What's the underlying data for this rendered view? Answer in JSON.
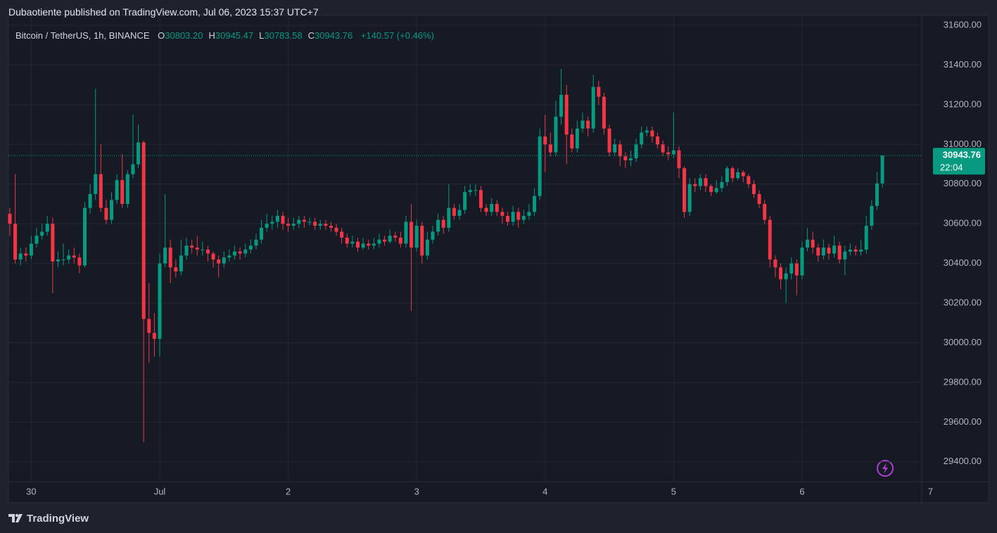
{
  "header": {
    "title": "Dubaotiente published on TradingView.com, Jul 06, 2023 15:37 UTC+7"
  },
  "chart_data": {
    "type": "candlestick",
    "legend": {
      "symbol": "Bitcoin / TetherUS, 1h, BINANCE",
      "ohlc": [
        {
          "label": "O",
          "value": "30803.20"
        },
        {
          "label": "H",
          "value": "30945.47"
        },
        {
          "label": "L",
          "value": "30783.58"
        },
        {
          "label": "C",
          "value": "30943.76"
        }
      ],
      "change": "+140.57 (+0.46%)"
    },
    "up_color": "#089981",
    "down_color": "#f23645",
    "grid": true,
    "open": [
      30650,
      30600,
      30420,
      30450,
      30440,
      30500,
      30540,
      30560,
      30600,
      30410,
      30420,
      30420,
      30440,
      30430,
      30390,
      30680,
      30750,
      30850,
      30680,
      30620,
      30720,
      30820,
      30700,
      30850,
      30900,
      31010,
      30120,
      30050,
      30020,
      30400,
      30480,
      30380,
      30360,
      30440,
      30490,
      30480,
      30470,
      30470,
      30450,
      30420,
      30400,
      30430,
      30440,
      30460,
      30450,
      30470,
      30490,
      30520,
      30580,
      30600,
      30610,
      30640,
      30600,
      30590,
      30600,
      30620,
      30610,
      30610,
      30590,
      30600,
      30590,
      30580,
      30560,
      30530,
      30500,
      30510,
      30480,
      30500,
      30490,
      30500,
      30520,
      30510,
      30540,
      30530,
      30500,
      30610,
      30480,
      30590,
      30440,
      30520,
      30560,
      30620,
      30580,
      30680,
      30640,
      30670,
      30760,
      30770,
      30770,
      30680,
      30660,
      30700,
      30660,
      30640,
      30610,
      30660,
      30620,
      30640,
      30660,
      30740,
      31040,
      31000,
      30960,
      31140,
      31250,
      31050,
      30980,
      31080,
      31120,
      31080,
      31290,
      31240,
      31080,
      30960,
      31000,
      30940,
      30920,
      30930,
      31000,
      31060,
      31070,
      31040,
      31000,
      30960,
      30950,
      30970,
      30880,
      30660,
      30800,
      30790,
      30830,
      30790,
      30760,
      30780,
      30810,
      30880,
      30830,
      30860,
      30840,
      30800,
      30750,
      30700,
      30620,
      30420,
      30380,
      30320,
      30350,
      30400,
      30340,
      30480,
      30520,
      30480,
      30440,
      30480,
      30450,
      30490,
      30420,
      30460,
      30470,
      30460,
      30470,
      30590,
      30690,
      30803.2
    ],
    "high": [
      30680,
      30850,
      30480,
      30480,
      30540,
      30580,
      30600,
      30640,
      30630,
      30460,
      30500,
      30470,
      30480,
      30450,
      30710,
      30800,
      31280,
      31000,
      30720,
      30760,
      30850,
      30950,
      30870,
      31150,
      31100,
      31020,
      30300,
      30150,
      30450,
      30750,
      30520,
      30420,
      30520,
      30530,
      30520,
      30540,
      30510,
      30490,
      30460,
      30440,
      30460,
      30470,
      30490,
      30480,
      30500,
      30520,
      30550,
      30620,
      30650,
      30640,
      30670,
      30660,
      30630,
      30630,
      30640,
      30640,
      30630,
      30630,
      30620,
      30620,
      30610,
      30600,
      30580,
      30550,
      30540,
      30530,
      30530,
      30520,
      30530,
      30550,
      30540,
      30570,
      30560,
      30560,
      30640,
      30700,
      30620,
      30610,
      30560,
      30590,
      30650,
      30640,
      30800,
      30700,
      30700,
      30790,
      30800,
      30800,
      30790,
      30700,
      30730,
      30720,
      30680,
      30660,
      30690,
      30680,
      30670,
      30700,
      30780,
      31080,
      31150,
      31060,
      31220,
      31380,
      31300,
      31080,
      31120,
      31160,
      31140,
      31350,
      31320,
      31260,
      31100,
      31030,
      31020,
      30960,
      30970,
      31030,
      31090,
      31090,
      31090,
      31060,
      31020,
      30990,
      31160,
      30990,
      30890,
      30830,
      30830,
      30850,
      30850,
      30800,
      30820,
      30840,
      30890,
      30890,
      30880,
      30870,
      30850,
      30820,
      30770,
      30720,
      30640,
      30440,
      30400,
      30380,
      30430,
      30420,
      30510,
      30580,
      30560,
      30500,
      30520,
      30500,
      30540,
      30510,
      30490,
      30500,
      30490,
      30520,
      30640,
      30720,
      30860,
      30945.47
    ],
    "low": [
      30540,
      30400,
      30390,
      30410,
      30420,
      30480,
      30520,
      30540,
      30250,
      30380,
      30390,
      30400,
      30400,
      30350,
      30380,
      30650,
      30720,
      30660,
      30600,
      30600,
      30700,
      30680,
      30680,
      30830,
      30880,
      29500,
      29900,
      29930,
      29930,
      30380,
      30300,
      30330,
      30340,
      30420,
      30450,
      30440,
      30440,
      30410,
      30380,
      30330,
      30380,
      30410,
      30420,
      30420,
      30430,
      30450,
      30470,
      30500,
      30560,
      30570,
      30580,
      30570,
      30560,
      30570,
      30580,
      30580,
      30590,
      30570,
      30570,
      30570,
      30560,
      30540,
      30500,
      30480,
      30480,
      30460,
      30470,
      30470,
      30470,
      30480,
      30490,
      30500,
      30510,
      30480,
      30480,
      30160,
      30460,
      30400,
      30420,
      30500,
      30540,
      30550,
      30560,
      30620,
      30620,
      30650,
      30740,
      30740,
      30660,
      30640,
      30640,
      30640,
      30600,
      30590,
      30590,
      30580,
      30600,
      30620,
      30640,
      30720,
      30860,
      30940,
      30940,
      31100,
      30900,
      30960,
      30960,
      31060,
      31040,
      31060,
      31200,
      31050,
      30940,
      30940,
      30890,
      30880,
      30890,
      30910,
      30980,
      31040,
      31010,
      30980,
      30940,
      30920,
      30930,
      30830,
      30630,
      30640,
      30760,
      30770,
      30760,
      30740,
      30750,
      30760,
      30790,
      30810,
      30820,
      30810,
      30780,
      30730,
      30680,
      30600,
      30380,
      30330,
      30270,
      30200,
      30320,
      30240,
      30320,
      30460,
      30450,
      30410,
      30420,
      30420,
      30430,
      30400,
      30340,
      30440,
      30440,
      30440,
      30450,
      30570,
      30670,
      30783.58
    ],
    "close": [
      30600,
      30420,
      30450,
      30440,
      30500,
      30540,
      30560,
      30600,
      30410,
      30420,
      30420,
      30440,
      30430,
      30390,
      30680,
      30750,
      30850,
      30680,
      30620,
      30720,
      30820,
      30700,
      30850,
      30900,
      31010,
      30120,
      30050,
      30020,
      30400,
      30480,
      30380,
      30360,
      30440,
      30490,
      30480,
      30470,
      30470,
      30450,
      30420,
      30400,
      30430,
      30440,
      30460,
      30450,
      30470,
      30490,
      30520,
      30580,
      30600,
      30610,
      30640,
      30600,
      30590,
      30600,
      30620,
      30610,
      30610,
      30590,
      30600,
      30590,
      30580,
      30560,
      30530,
      30500,
      30510,
      30480,
      30500,
      30490,
      30500,
      30520,
      30510,
      30540,
      30530,
      30500,
      30610,
      30480,
      30590,
      30440,
      30520,
      30560,
      30620,
      30580,
      30680,
      30640,
      30670,
      30760,
      30770,
      30770,
      30680,
      30660,
      30700,
      30660,
      30640,
      30610,
      30660,
      30620,
      30640,
      30660,
      30740,
      31040,
      31000,
      30960,
      31140,
      31250,
      31050,
      30980,
      31080,
      31120,
      31080,
      31290,
      31240,
      31080,
      30960,
      31000,
      30940,
      30920,
      30930,
      31000,
      31060,
      31070,
      31040,
      31000,
      30960,
      30950,
      30970,
      30880,
      30660,
      30800,
      30790,
      30830,
      30790,
      30760,
      30780,
      30810,
      30880,
      30830,
      30860,
      30840,
      30800,
      30750,
      30700,
      30620,
      30420,
      30380,
      30320,
      30350,
      30400,
      30340,
      30480,
      30520,
      30480,
      30440,
      30480,
      30450,
      30490,
      30420,
      30460,
      30470,
      30460,
      30470,
      30590,
      30690,
      30803.2,
      30943.76
    ],
    "xlim": [
      -0.26,
      170.35
    ],
    "xticks": [
      {
        "value": 4,
        "label": "30"
      },
      {
        "value": 28,
        "label": "Jul"
      },
      {
        "value": 52,
        "label": "2"
      },
      {
        "value": 76,
        "label": "3"
      },
      {
        "value": 100,
        "label": "4"
      },
      {
        "value": 124,
        "label": "5"
      },
      {
        "value": 148,
        "label": "6"
      },
      {
        "value": 172,
        "label": "7"
      }
    ],
    "ylim": [
      29300,
      31650
    ],
    "yticks": [
      {
        "value": 29400,
        "label": "29400.00"
      },
      {
        "value": 29600,
        "label": "29600.00"
      },
      {
        "value": 29800,
        "label": "29800.00"
      },
      {
        "value": 30000,
        "label": "30000.00"
      },
      {
        "value": 30200,
        "label": "30200.00"
      },
      {
        "value": 30400,
        "label": "30400.00"
      },
      {
        "value": 30600,
        "label": "30600.00"
      },
      {
        "value": 30800,
        "label": "30800.00"
      },
      {
        "value": 31000,
        "label": "31000.00"
      },
      {
        "value": 31200,
        "label": "31200.00"
      },
      {
        "value": 31400,
        "label": "31400.00"
      },
      {
        "value": 31600,
        "label": "31600.00"
      }
    ],
    "price_tag": {
      "value": 30943.76,
      "label": "30943.76",
      "countdown": "22:04"
    }
  },
  "footer": {
    "brand": "TradingView"
  }
}
